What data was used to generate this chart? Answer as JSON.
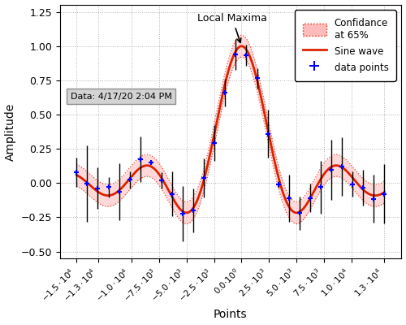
{
  "title": "",
  "xlabel": "Points",
  "ylabel": "Amplitude",
  "xlim": [
    -16500,
    14500
  ],
  "ylim": [
    -0.55,
    1.3
  ],
  "x_min": -15000,
  "x_max": 13000,
  "n_curve": 2000,
  "n_data": 30,
  "sinc_scale": 3500.0,
  "sigma_band": 0.08,
  "line_color": "#dd2200",
  "band_color": "#ffbbbb",
  "band_alpha": 0.55,
  "band_line_color": "#dd2200",
  "data_color": "blue",
  "annotation_text": "Local Maxima",
  "textbox_text": "Data: 4/17/20 2:04 PM",
  "legend_confidence": "Confidance\nat 65%",
  "legend_sine": "Sine wave",
  "legend_data": "data points",
  "figsize": [
    5.0,
    4.0
  ],
  "dpi": 100,
  "x_ticks": [
    -15000,
    -13000,
    -10000,
    -7500,
    -5000,
    -2500,
    0,
    2500,
    5000,
    7500,
    10000,
    13000
  ],
  "y_ticks": [
    -0.5,
    -0.25,
    0.0,
    0.25,
    0.5,
    0.75,
    1.0,
    1.25
  ]
}
